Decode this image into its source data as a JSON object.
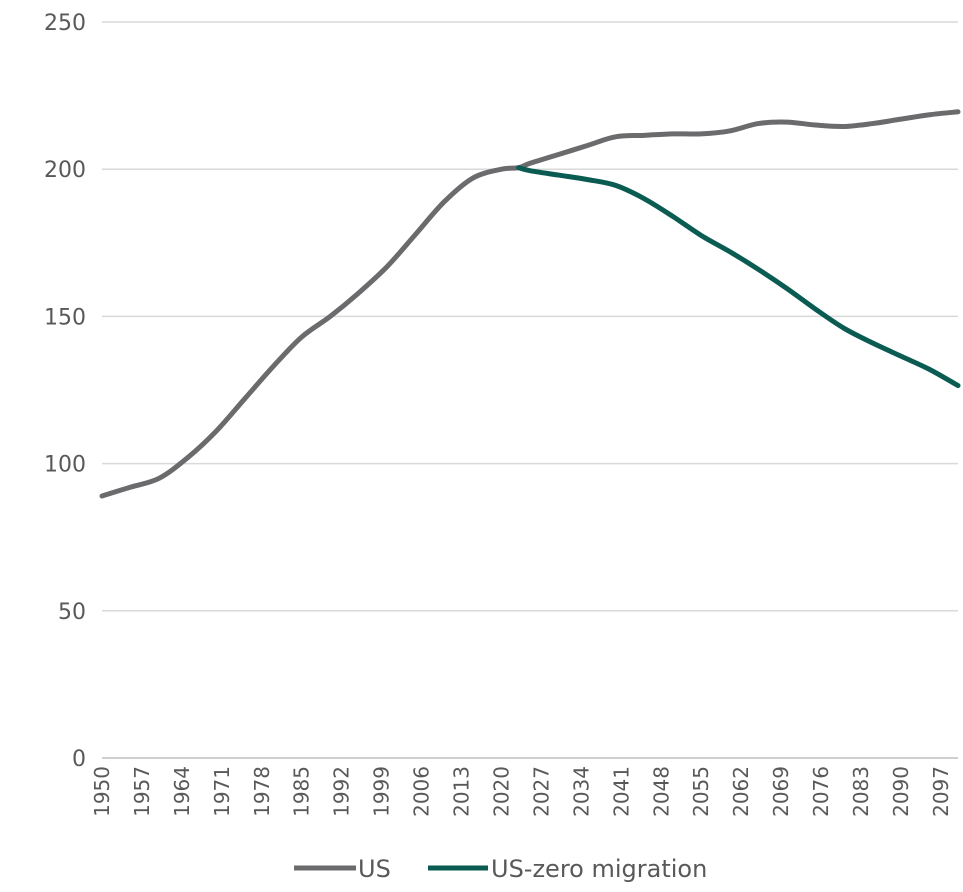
{
  "chart_data": {
    "type": "line",
    "title": "",
    "xlabel": "",
    "ylabel": "",
    "ylim": [
      0,
      250
    ],
    "yticks": [
      0,
      50,
      100,
      150,
      200,
      250
    ],
    "xticks": [
      "1950",
      "1957",
      "1964",
      "1971",
      "1978",
      "1985",
      "1992",
      "1999",
      "2006",
      "2013",
      "2020",
      "2027",
      "2034",
      "2041",
      "2048",
      "2055",
      "2062",
      "2069",
      "2076",
      "2083",
      "2090",
      "2097"
    ],
    "xlim": [
      1950,
      2100
    ],
    "grid": true,
    "legend_position": "bottom",
    "series": [
      {
        "name": "US",
        "color": "#6b6b6e",
        "x": [
          1950,
          1955,
          1960,
          1965,
          1970,
          1975,
          1980,
          1985,
          1990,
          1995,
          2000,
          2005,
          2010,
          2015,
          2020,
          2023,
          2025,
          2030,
          2035,
          2040,
          2045,
          2050,
          2055,
          2060,
          2065,
          2070,
          2075,
          2080,
          2085,
          2090,
          2095,
          2100
        ],
        "y": [
          89,
          92,
          95,
          102,
          111,
          122,
          133,
          143,
          150,
          158,
          167,
          178,
          189,
          197,
          200,
          200.5,
          202,
          205,
          208,
          211,
          211.5,
          212,
          212,
          213,
          215.5,
          216,
          215,
          214.5,
          215.5,
          217,
          218.5,
          219.5
        ]
      },
      {
        "name": "US-zero migration",
        "color": "#0a5b52",
        "x": [
          2023,
          2025,
          2030,
          2035,
          2040,
          2045,
          2050,
          2055,
          2060,
          2065,
          2070,
          2075,
          2080,
          2085,
          2090,
          2095,
          2100
        ],
        "y": [
          200.5,
          199.5,
          198,
          196.5,
          194.5,
          190,
          184,
          177.5,
          172,
          166,
          159.5,
          152.5,
          146,
          141,
          136.5,
          132,
          126.5
        ]
      }
    ]
  }
}
